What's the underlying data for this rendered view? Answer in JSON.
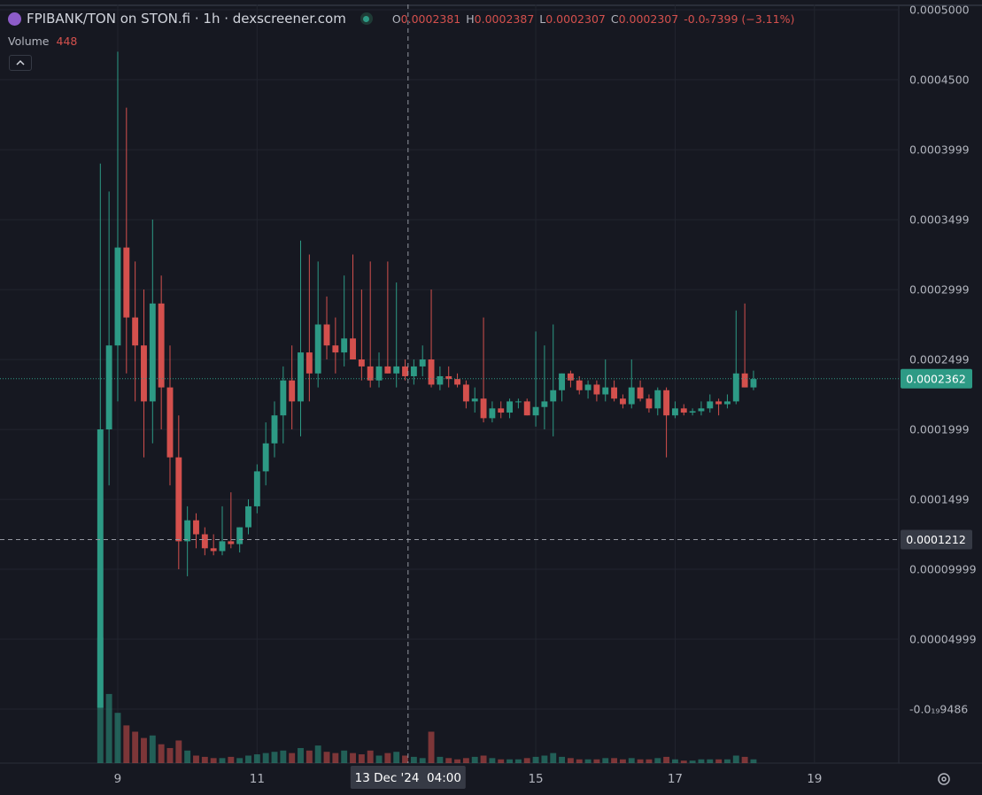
{
  "chart_data": {
    "type": "candlestick",
    "title": "FPIBANK/TON on STON.fi · 1h · dexscreener.com",
    "legend": {
      "open_label": "O",
      "open": 0.0002381,
      "high_label": "H",
      "high": 0.0002387,
      "low_label": "L",
      "low": 0.0002307,
      "close_label": "C",
      "close": 0.0002307,
      "change": "-0.0₅7399 (−3.11%)"
    },
    "volume_label": "Volume",
    "volume_value": 448,
    "up_color": "#2d9a85",
    "down_color": "#d4504d",
    "grid": true,
    "xlim": [
      7.31,
      20.21
    ],
    "xticks": [
      9,
      11,
      15,
      17,
      19
    ],
    "ylim": [
      -3.86e-05,
      0.0005038
    ],
    "yticks": [
      {
        "value": 0.0005,
        "label": "0.0005000"
      },
      {
        "value": 0.00045,
        "label": "0.0004500"
      },
      0.0003999,
      0.0003499,
      0.0002999,
      0.0002499,
      0.0001999,
      0.0001499,
      9.999e-05,
      4.999e-05,
      {
        "value": -9.486e-24,
        "label": "-0.0₁₉9486"
      }
    ],
    "last_price": 0.0002362,
    "crosshair": {
      "price": 0.0001212,
      "x": 13.1667,
      "time_label": "13 Dec '24  04:00"
    },
    "x": [
      8.75,
      8.875,
      9,
      9.125,
      9.25,
      9.375,
      9.5,
      9.625,
      9.75,
      9.875,
      10,
      10.125,
      10.25,
      10.375,
      10.5,
      10.625,
      10.75,
      10.875,
      11,
      11.125,
      11.25,
      11.375,
      11.5,
      11.625,
      11.75,
      11.875,
      12,
      12.125,
      12.25,
      12.375,
      12.5,
      12.625,
      12.75,
      12.875,
      13,
      13.125,
      13.25,
      13.375,
      13.5,
      13.625,
      13.75,
      13.875,
      14,
      14.125,
      14.25,
      14.375,
      14.5,
      14.625,
      14.75,
      14.875,
      15,
      15.125,
      15.25,
      15.375,
      15.5,
      15.625,
      15.75,
      15.875,
      16,
      16.125,
      16.25,
      16.375,
      16.5,
      16.625,
      16.75,
      16.875,
      17,
      17.125,
      17.25,
      17.375,
      17.5,
      17.625,
      17.75,
      17.875,
      18,
      18.125
    ],
    "open": [
      1e-06,
      0.0002,
      0.00026,
      0.00033,
      0.00028,
      0.00026,
      0.00022,
      0.00029,
      0.00023,
      0.00018,
      0.00012,
      0.000135,
      0.000125,
      0.000115,
      0.000113,
      0.00012,
      0.000118,
      0.00013,
      0.000145,
      0.00017,
      0.00019,
      0.00021,
      0.000235,
      0.00022,
      0.000255,
      0.00024,
      0.000275,
      0.00026,
      0.000255,
      0.000265,
      0.00025,
      0.000245,
      0.000235,
      0.000245,
      0.00024,
      0.000245,
      0.000238,
      0.000245,
      0.00025,
      0.000232,
      0.000238,
      0.000236,
      0.000232,
      0.00022,
      0.000222,
      0.000208,
      0.000215,
      0.000212,
      0.00022,
      0.00022,
      0.00021,
      0.000216,
      0.00022,
      0.000228,
      0.00024,
      0.000235,
      0.000228,
      0.000232,
      0.000225,
      0.00023,
      0.000222,
      0.000218,
      0.00023,
      0.000222,
      0.000215,
      0.000228,
      0.00021,
      0.000215,
      0.000212,
      0.000213,
      0.000215,
      0.00022,
      0.000218,
      0.00022,
      0.00024,
      0.00023
    ],
    "high": [
      0.00039,
      0.00037,
      0.00047,
      0.00043,
      0.00032,
      0.0003,
      0.00035,
      0.00031,
      0.00026,
      0.00021,
      0.000145,
      0.00014,
      0.00013,
      0.000125,
      0.000145,
      0.000155,
      0.00013,
      0.00015,
      0.000175,
      0.000205,
      0.00022,
      0.000245,
      0.00026,
      0.000335,
      0.000325,
      0.00032,
      0.000295,
      0.00028,
      0.00031,
      0.000325,
      0.0003,
      0.00032,
      0.000255,
      0.00032,
      0.000305,
      0.00025,
      0.00025,
      0.00026,
      0.0003,
      0.000245,
      0.000245,
      0.00024,
      0.000235,
      0.00023,
      0.00028,
      0.00022,
      0.00022,
      0.000222,
      0.000222,
      0.000222,
      0.00027,
      0.00026,
      0.000275,
      0.00024,
      0.000242,
      0.000238,
      0.000235,
      0.000235,
      0.00025,
      0.000235,
      0.000225,
      0.00025,
      0.000235,
      0.000225,
      0.00023,
      0.00023,
      0.00022,
      0.000218,
      0.000215,
      0.00022,
      0.000225,
      0.000222,
      0.000225,
      0.000285,
      0.00029,
      0.000242
    ],
    "low": [
      1e-06,
      0.00016,
      0.00022,
      0.00024,
      0.00022,
      0.00018,
      0.00019,
      0.0002,
      0.00016,
      0.0001,
      9.5e-05,
      0.000115,
      0.00011,
      0.00011,
      0.00011,
      0.000115,
      0.000112,
      0.000125,
      0.00014,
      0.00016,
      0.00018,
      0.00019,
      0.0002,
      0.000195,
      0.00022,
      0.00023,
      0.00025,
      0.00024,
      0.000245,
      0.00025,
      0.000235,
      0.00023,
      0.00023,
      0.00024,
      0.00023,
      0.000235,
      0.000232,
      0.000238,
      0.00023,
      0.000228,
      0.00023,
      0.00023,
      0.000215,
      0.000212,
      0.000205,
      0.000205,
      0.000208,
      0.000208,
      0.000215,
      0.00021,
      0.000202,
      0.0002,
      0.000195,
      0.00022,
      0.00023,
      0.000225,
      0.000222,
      0.00022,
      0.00022,
      0.00022,
      0.000215,
      0.000215,
      0.00022,
      0.000212,
      0.00021,
      0.00018,
      0.000208,
      0.00021,
      0.00021,
      0.00021,
      0.000212,
      0.00021,
      0.000215,
      0.000218,
      0.00023,
      0.000228
    ],
    "close": [
      0.0002,
      0.00026,
      0.00033,
      0.00028,
      0.00026,
      0.00022,
      0.00029,
      0.00023,
      0.00018,
      0.00012,
      0.000135,
      0.000125,
      0.000115,
      0.000113,
      0.00012,
      0.000118,
      0.00013,
      0.000145,
      0.00017,
      0.00019,
      0.00021,
      0.000235,
      0.00022,
      0.000255,
      0.00024,
      0.000275,
      0.00026,
      0.000255,
      0.000265,
      0.00025,
      0.000245,
      0.000235,
      0.000245,
      0.00024,
      0.000245,
      0.000238,
      0.000245,
      0.00025,
      0.000232,
      0.000238,
      0.000236,
      0.000232,
      0.00022,
      0.000222,
      0.000208,
      0.000215,
      0.000212,
      0.00022,
      0.00022,
      0.00021,
      0.000216,
      0.00022,
      0.000228,
      0.00024,
      0.000235,
      0.000228,
      0.000232,
      0.000225,
      0.00023,
      0.000222,
      0.000218,
      0.00023,
      0.000222,
      0.000215,
      0.000228,
      0.00021,
      0.000215,
      0.000212,
      0.000213,
      0.000215,
      0.00022,
      0.000218,
      0.00022,
      0.00024,
      0.00023,
      0.000236
    ],
    "volume": [
      100,
      55,
      40,
      30,
      25,
      20,
      22,
      15,
      12,
      18,
      10,
      6,
      5,
      4,
      4,
      5,
      4,
      6,
      7,
      8,
      9,
      10,
      8,
      12,
      10,
      14,
      9,
      8,
      10,
      8,
      7,
      10,
      6,
      8,
      9,
      6,
      5,
      4,
      25,
      5,
      4,
      3,
      4,
      5,
      6,
      4,
      3,
      3,
      3,
      4,
      5,
      6,
      8,
      5,
      4,
      3,
      3,
      3,
      4,
      4,
      3,
      4,
      3,
      3,
      4,
      5,
      3,
      2,
      2,
      3,
      3,
      3,
      3,
      6,
      5,
      3
    ]
  }
}
